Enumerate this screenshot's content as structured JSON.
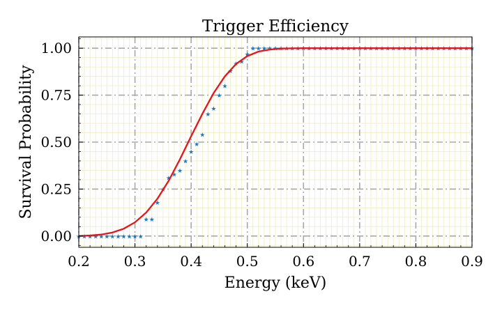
{
  "chart_data": {
    "type": "scatter",
    "title": "Trigger Efficiency",
    "xlabel": "Energy (keV)",
    "ylabel": "Survival Probability",
    "xlim": [
      0.2,
      0.9
    ],
    "ylim": [
      -0.06,
      1.06
    ],
    "xticks": [
      "0.2",
      "0.3",
      "0.4",
      "0.5",
      "0.6",
      "0.7",
      "0.8",
      "0.9"
    ],
    "yticks": [
      "0.00",
      "0.25",
      "0.50",
      "0.75",
      "1.00"
    ],
    "grid": true,
    "legend": "none",
    "series": [
      {
        "kind": "markers",
        "marker": "star",
        "color": "#1f77b4",
        "x": [
          0.2,
          0.21,
          0.22,
          0.23,
          0.24,
          0.25,
          0.26,
          0.27,
          0.28,
          0.29,
          0.3,
          0.31,
          0.32,
          0.33,
          0.34,
          0.35,
          0.36,
          0.37,
          0.38,
          0.39,
          0.4,
          0.41,
          0.42,
          0.43,
          0.44,
          0.45,
          0.46,
          0.47,
          0.48,
          0.49,
          0.5,
          0.51,
          0.52,
          0.53,
          0.54,
          0.55,
          0.56,
          0.57,
          0.58,
          0.59,
          0.6,
          0.61,
          0.62,
          0.63,
          0.64,
          0.65,
          0.66,
          0.67,
          0.68,
          0.69,
          0.7,
          0.71,
          0.72,
          0.73,
          0.74,
          0.75,
          0.76,
          0.77,
          0.78,
          0.79,
          0.8,
          0.81,
          0.82,
          0.83,
          0.84,
          0.85,
          0.86,
          0.87,
          0.88,
          0.89,
          0.9
        ],
        "y": [
          0.0,
          0.0,
          0.0,
          0.0,
          0.0,
          0.0,
          0.0,
          0.0,
          0.0,
          0.0,
          0.0,
          0.0,
          0.09,
          0.09,
          0.18,
          0.25,
          0.31,
          0.33,
          0.35,
          0.4,
          0.45,
          0.49,
          0.54,
          0.65,
          0.68,
          0.75,
          0.8,
          0.88,
          0.92,
          0.93,
          0.97,
          1.0,
          1.0,
          1.0,
          1.0,
          1.0,
          1.0,
          1.0,
          1.0,
          1.0,
          1.0,
          1.0,
          1.0,
          1.0,
          1.0,
          1.0,
          1.0,
          1.0,
          1.0,
          1.0,
          1.0,
          1.0,
          1.0,
          1.0,
          1.0,
          1.0,
          1.0,
          1.0,
          1.0,
          1.0,
          1.0,
          1.0,
          1.0,
          1.0,
          1.0,
          1.0,
          1.0,
          1.0,
          1.0,
          1.0,
          1.0
        ]
      },
      {
        "kind": "line",
        "color": "#e8141b",
        "x": [
          0.2,
          0.22,
          0.24,
          0.26,
          0.28,
          0.3,
          0.32,
          0.34,
          0.36,
          0.38,
          0.4,
          0.42,
          0.44,
          0.46,
          0.48,
          0.5,
          0.52,
          0.54,
          0.56,
          0.58,
          0.6,
          0.65,
          0.7,
          0.75,
          0.8,
          0.85,
          0.9
        ],
        "y": [
          0.0,
          0.003,
          0.008,
          0.019,
          0.039,
          0.073,
          0.125,
          0.199,
          0.294,
          0.408,
          0.531,
          0.651,
          0.761,
          0.85,
          0.916,
          0.958,
          0.982,
          0.993,
          0.998,
          0.999,
          1.0,
          1.0,
          1.0,
          1.0,
          1.0,
          1.0,
          1.0
        ]
      }
    ]
  }
}
